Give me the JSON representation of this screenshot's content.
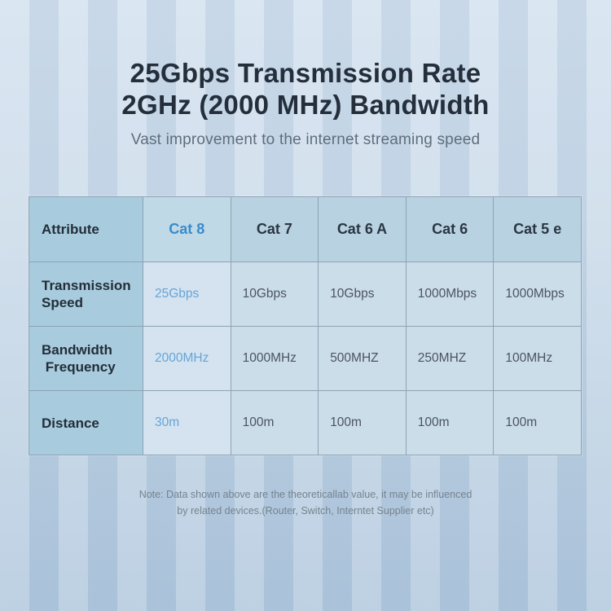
{
  "header": {
    "title_line1": "25Gbps Transmission Rate",
    "title_line2": "2GHz (2000 MHz) Bandwidth",
    "subtitle": "Vast improvement to the internet streaming speed"
  },
  "chart_data": {
    "type": "table",
    "title": "25Gbps Transmission Rate 2GHz (2000 MHz) Bandwidth",
    "columns": [
      "Attribute",
      "Cat 8",
      "Cat 7",
      "Cat 6 A",
      "Cat 6",
      "Cat 5 e"
    ],
    "rows": [
      {
        "label": "Transmission\nSpeed",
        "values": [
          "25Gbps",
          "10Gbps",
          "10Gbps",
          "1000Mbps",
          "1000Mbps"
        ]
      },
      {
        "label": "Bandwidth\n Frequency",
        "values": [
          "2000MHz",
          "1000MHz",
          "500MHZ",
          "250MHZ",
          "100MHz"
        ]
      },
      {
        "label": "Distance",
        "values": [
          "30m",
          "100m",
          "100m",
          "100m",
          "100m"
        ]
      }
    ],
    "highlight_column": "Cat 8"
  },
  "note": {
    "text": "Note: Data shown above are the theoreticallab value, it may be influenced\nby related devices.(Router, Switch, Interntet Supplier etc)"
  },
  "colors": {
    "accent_blue": "#3a8cc9",
    "accent_blue_light": "#66a5d8",
    "title_text": "#242f3b",
    "subtitle_text": "#5f6e7c",
    "note_text": "#75838f",
    "attribute_column_bg": "#a8ccde",
    "header_row_bg": "#b8d2e2",
    "highlight_header_bg": "#c0d9e7",
    "body_cell_bg": "#ccddea",
    "highlight_body_bg": "#d4e3ef",
    "table_border": "#8da3b3",
    "background_top": "#d3e1ef",
    "background_bottom": "#b1c8de"
  }
}
